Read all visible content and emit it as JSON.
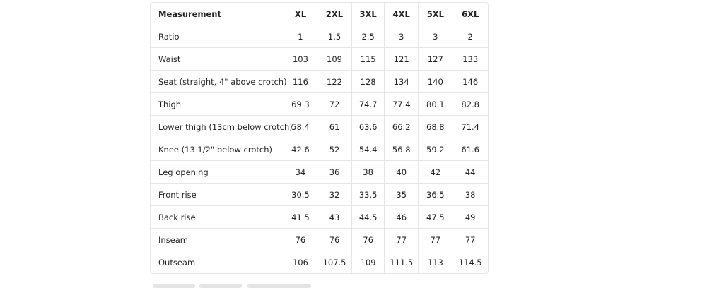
{
  "table": {
    "header": [
      "Measurement",
      "XL",
      "2XL",
      "3XL",
      "4XL",
      "5XL",
      "6XL"
    ],
    "rows": [
      [
        "Ratio",
        "1",
        "1.5",
        "2.5",
        "3",
        "3",
        "2"
      ],
      [
        "Waist",
        "103",
        "109",
        "115",
        "121",
        "127",
        "133"
      ],
      [
        "Seat (straight, 4\" above crotch)",
        "116",
        "122",
        "128",
        "134",
        "140",
        "146"
      ],
      [
        "Thigh",
        "69.3",
        "72",
        "74.7",
        "77.4",
        "80.1",
        "82.8"
      ],
      [
        "Lower thigh (13cm below crotch)",
        "58.4",
        "61",
        "63.6",
        "66.2",
        "68.8",
        "71.4"
      ],
      [
        "Knee (13 1/2\" below crotch)",
        "42.6",
        "52",
        "54.4",
        "56.8",
        "59.2",
        "61.6"
      ],
      [
        "Leg opening",
        "34",
        "36",
        "38",
        "40",
        "42",
        "44"
      ],
      [
        "Front rise",
        "30.5",
        "32",
        "33.5",
        "35",
        "36.5",
        "38"
      ],
      [
        "Back rise",
        "41.5",
        "43",
        "44.5",
        "46",
        "47.5",
        "49"
      ],
      [
        "Inseam",
        "76",
        "76",
        "76",
        "77",
        "77",
        "77"
      ],
      [
        "Outseam",
        "106",
        "107.5",
        "109",
        "111.5",
        "113",
        "114.5"
      ]
    ]
  }
}
